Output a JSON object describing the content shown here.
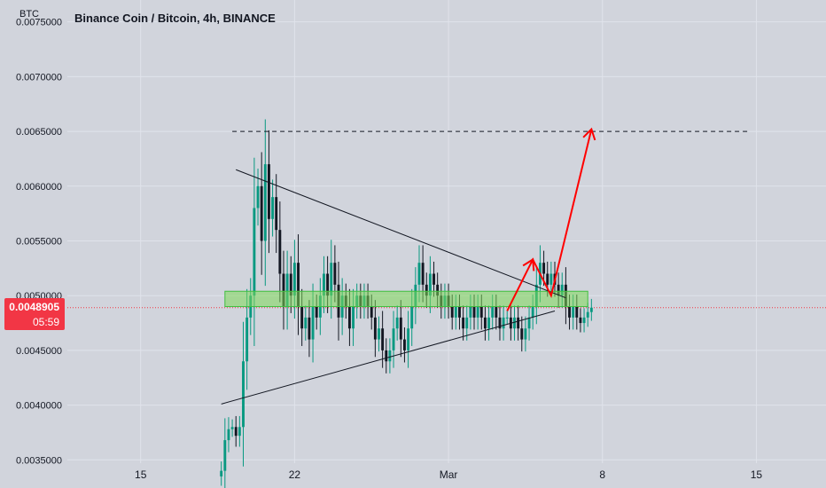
{
  "header": {
    "currency": "BTC",
    "title": "Binance Coin / Bitcoin, 4h, BINANCE"
  },
  "price_badge": {
    "price": "0.0048905",
    "countdown": "05:59",
    "color": "#f23645"
  },
  "colors": {
    "up": "#089981",
    "down": "#131722",
    "zone_fill": "#7ed957",
    "zone_stroke": "#3fbf3f",
    "arrow": "#ff0000",
    "grid": "#e0e3eb",
    "background": "#d1d4dc"
  },
  "chart_data": {
    "type": "candlestick",
    "title": "Binance Coin / Bitcoin, 4h, BINANCE",
    "ylabel": "",
    "xlabel": "",
    "ylim": [
      0.00347,
      0.0077
    ],
    "y_ticks": [
      "0.0035000",
      "0.0040000",
      "0.0045000",
      "0.0050000",
      "0.0055000",
      "0.0060000",
      "0.0065000",
      "0.0070000",
      "0.0075000"
    ],
    "y_tick_values": [
      0.0035,
      0.004,
      0.0045,
      0.005,
      0.0055,
      0.006,
      0.0065,
      0.007,
      0.0075
    ],
    "x_ticks": [
      "15",
      "22",
      "Mar",
      "8",
      "15"
    ],
    "x_tick_values": [
      "2021-02-15",
      "2021-02-22",
      "2021-03-01",
      "2021-03-08",
      "2021-03-15"
    ],
    "xlim": [
      "2021-02-11T16:00",
      "2021-03-18T04:00"
    ],
    "current_price": 0.0048905,
    "first_bar": "2021-02-18T16:00",
    "bar_hours": 4,
    "ohlc_close": [
      0.0034,
      0.00368,
      0.00378,
      0.0038,
      0.00372,
      0.0038,
      0.0044,
      0.0048,
      0.005,
      0.0058,
      0.006,
      0.0055,
      0.0062,
      0.0057,
      0.0059,
      0.0056,
      0.0052,
      0.0049,
      0.0052,
      0.005,
      0.0053,
      0.0049,
      0.0047,
      0.0048,
      0.0046,
      0.0049,
      0.0048,
      0.005,
      0.0052,
      0.005,
      0.0053,
      0.0051,
      0.0048,
      0.005,
      0.0049,
      0.0047,
      0.0049,
      0.005,
      0.0049,
      0.005,
      0.0049,
      0.0048,
      0.0046,
      0.0047,
      0.0045,
      0.0044,
      0.0045,
      0.0047,
      0.0048,
      0.0046,
      0.0045,
      0.0047,
      0.0049,
      0.0051,
      0.0053,
      0.0051,
      0.005,
      0.0052,
      0.0051,
      0.005,
      0.0049,
      0.005,
      0.0049,
      0.0048,
      0.0049,
      0.0048,
      0.0047,
      0.0048,
      0.0049,
      0.0048,
      0.0049,
      0.0048,
      0.0047,
      0.0048,
      0.0049,
      0.0048,
      0.0047,
      0.0048,
      0.0048,
      0.0047,
      0.0048,
      0.0047,
      0.0046,
      0.0047,
      0.0048,
      0.0049,
      0.0051,
      0.0053,
      0.0052,
      0.0051,
      0.0052,
      0.0051,
      0.005,
      0.0051,
      0.0049,
      0.0048,
      0.0049,
      0.0048,
      0.00475,
      0.0048,
      0.00485,
      0.00489
    ],
    "resistance_line": [
      [
        "2021-02-19T08:00",
        0.00615
      ],
      [
        "2021-03-06T08:00",
        0.00498
      ]
    ],
    "support_line": [
      [
        "2021-02-18T16:00",
        0.00401
      ],
      [
        "2021-03-05T20:00",
        0.00486
      ]
    ],
    "target_line": [
      [
        "2021-02-19T04:00",
        0.0065
      ],
      [
        "2021-03-14T16:00",
        0.0065
      ]
    ],
    "zone": {
      "x": [
        "2021-02-18T20:00",
        "2021-03-07T08:00"
      ],
      "y": [
        0.0049,
        0.00504
      ]
    },
    "projection_path": [
      [
        "2021-03-03T16:00",
        0.00486
      ],
      [
        "2021-03-04T20:00",
        0.00533
      ],
      [
        "2021-03-05T16:00",
        0.005
      ],
      [
        "2021-03-07T12:00",
        0.00652
      ]
    ]
  }
}
